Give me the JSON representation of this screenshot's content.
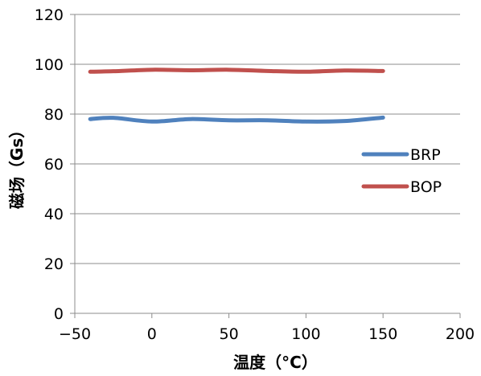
{
  "chart_data": {
    "type": "line",
    "title": "",
    "xlabel": "温度（°C）",
    "ylabel": "磁场（Gs）",
    "xlim": [
      -50,
      200
    ],
    "ylim": [
      0,
      120
    ],
    "xticks": [
      -50,
      0,
      50,
      100,
      150,
      200
    ],
    "yticks": [
      0,
      20,
      40,
      60,
      80,
      100,
      120
    ],
    "grid": {
      "horizontal": true,
      "vertical": false
    },
    "legend_position": "right",
    "series": [
      {
        "name": "BRP",
        "color": "#4F81BD",
        "x": [
          -40,
          -25,
          0,
          25,
          50,
          75,
          100,
          125,
          150
        ],
        "y": [
          78,
          78.5,
          77,
          78,
          77.5,
          77.5,
          77,
          77.2,
          78.6
        ]
      },
      {
        "name": "BOP",
        "color": "#C0504D",
        "x": [
          -40,
          -25,
          0,
          25,
          50,
          75,
          100,
          125,
          150
        ],
        "y": [
          97,
          97.2,
          97.8,
          97.6,
          97.8,
          97.3,
          97,
          97.5,
          97.3
        ]
      }
    ]
  }
}
